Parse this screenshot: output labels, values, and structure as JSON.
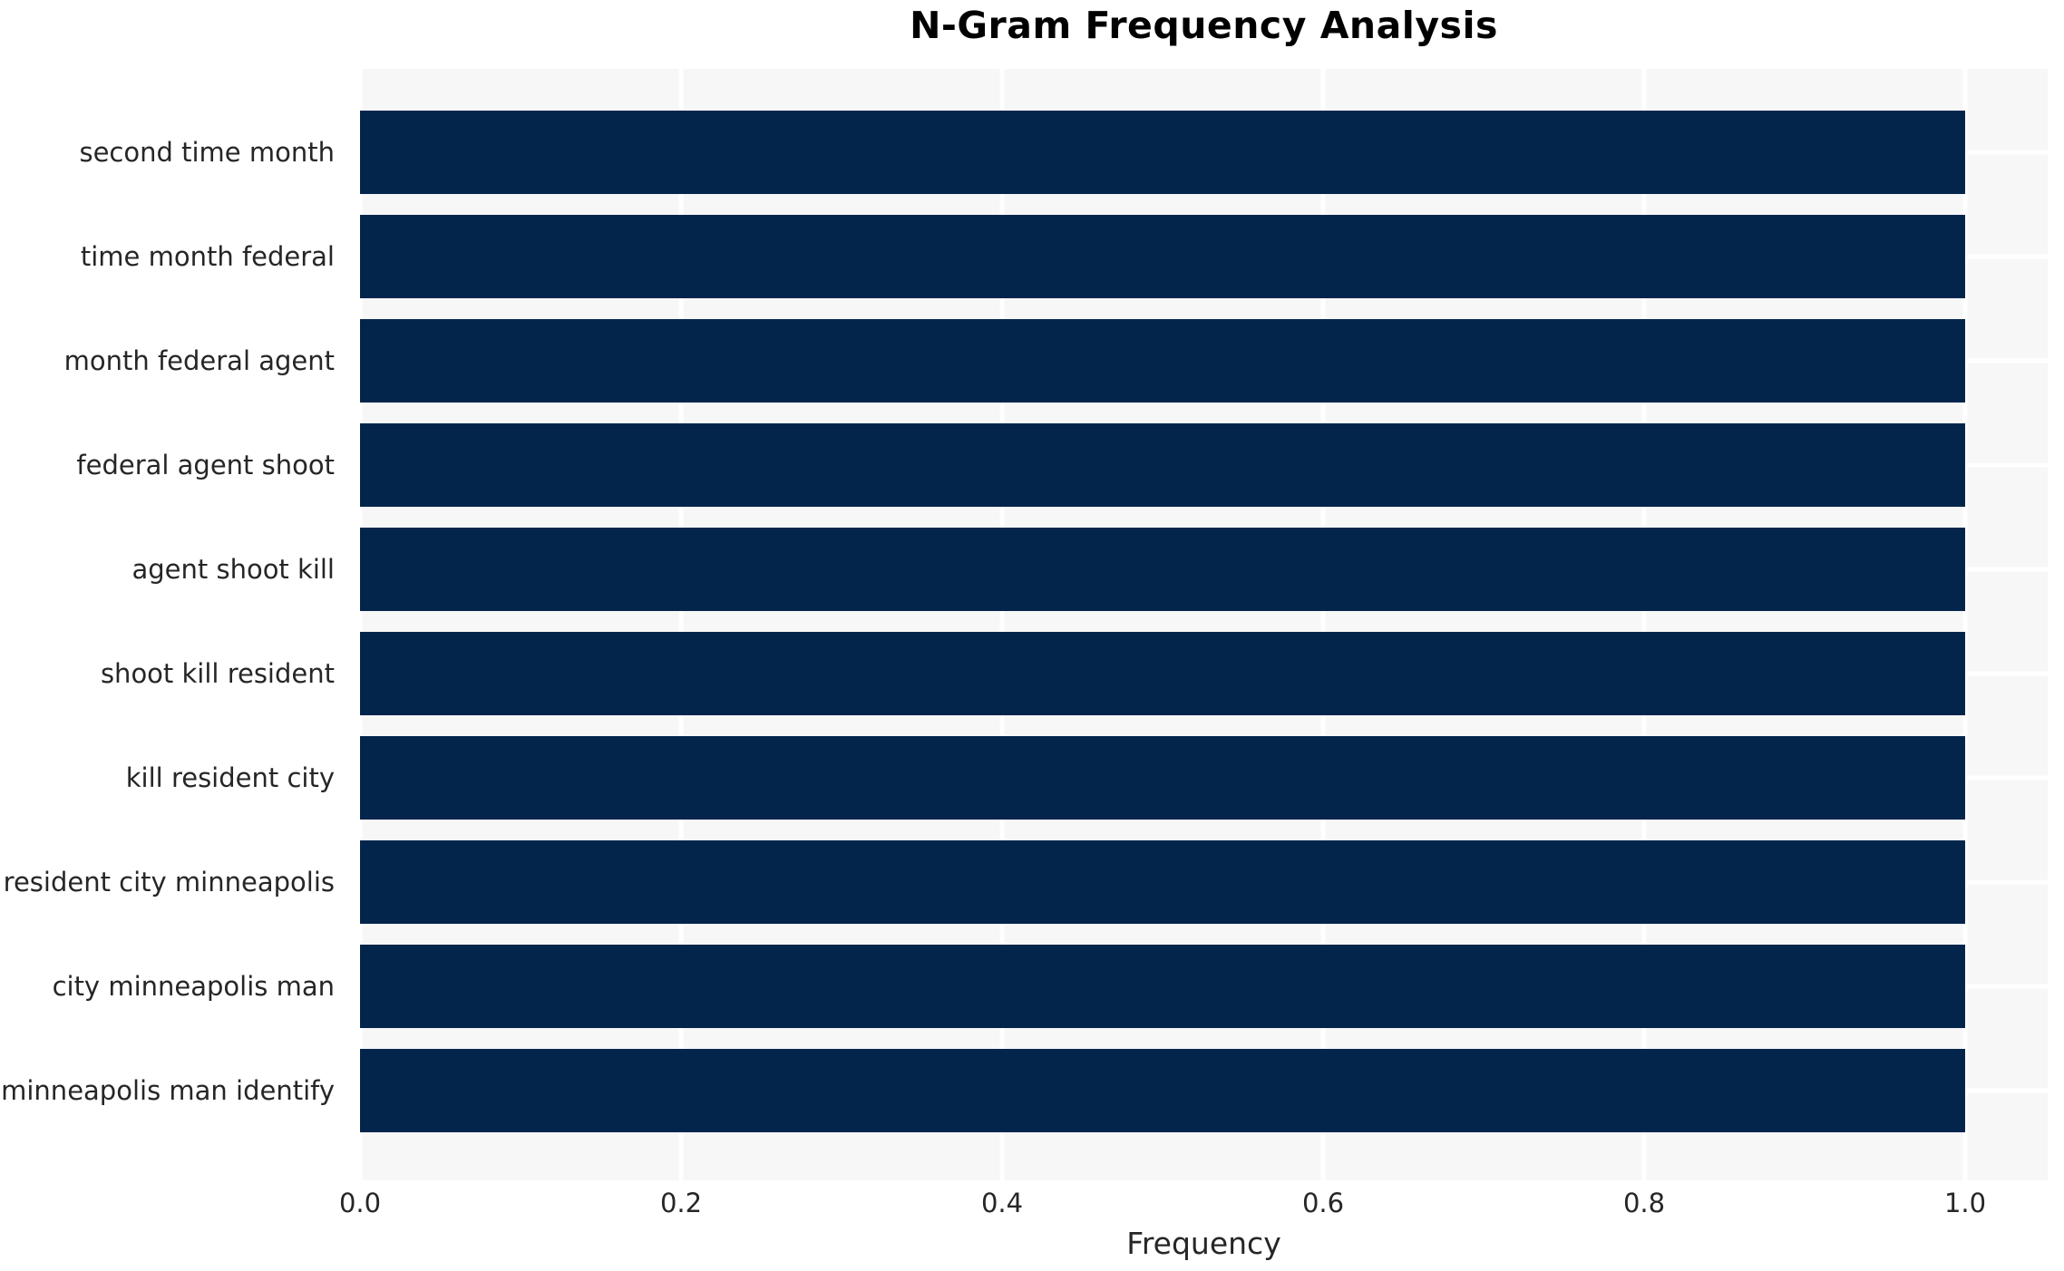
{
  "chart_data": {
    "type": "bar",
    "orientation": "horizontal",
    "title": "N-Gram Frequency Analysis",
    "xlabel": "Frequency",
    "ylabel": "",
    "categories": [
      "second time month",
      "time month federal",
      "month federal agent",
      "federal agent shoot",
      "agent shoot kill",
      "shoot kill resident",
      "kill resident city",
      "resident city minneapolis",
      "city minneapolis man",
      "minneapolis man identify"
    ],
    "values": [
      1.0,
      1.0,
      1.0,
      1.0,
      1.0,
      1.0,
      1.0,
      1.0,
      1.0,
      1.0
    ],
    "xlim": [
      0,
      1.0514
    ],
    "xticks": [
      0.0,
      0.2,
      0.4,
      0.6,
      0.8,
      1.0
    ],
    "xtick_labels": [
      "0.0",
      "0.2",
      "0.4",
      "0.6",
      "0.8",
      "1.0"
    ],
    "grid": true,
    "legend": false,
    "colors": {
      "bar": "#03254c",
      "plot_background": "#f7f7f8",
      "gridline": "#ffffff",
      "figure_background": "#ffffff",
      "title_text": "#000000",
      "tick_text": "#262626"
    }
  }
}
